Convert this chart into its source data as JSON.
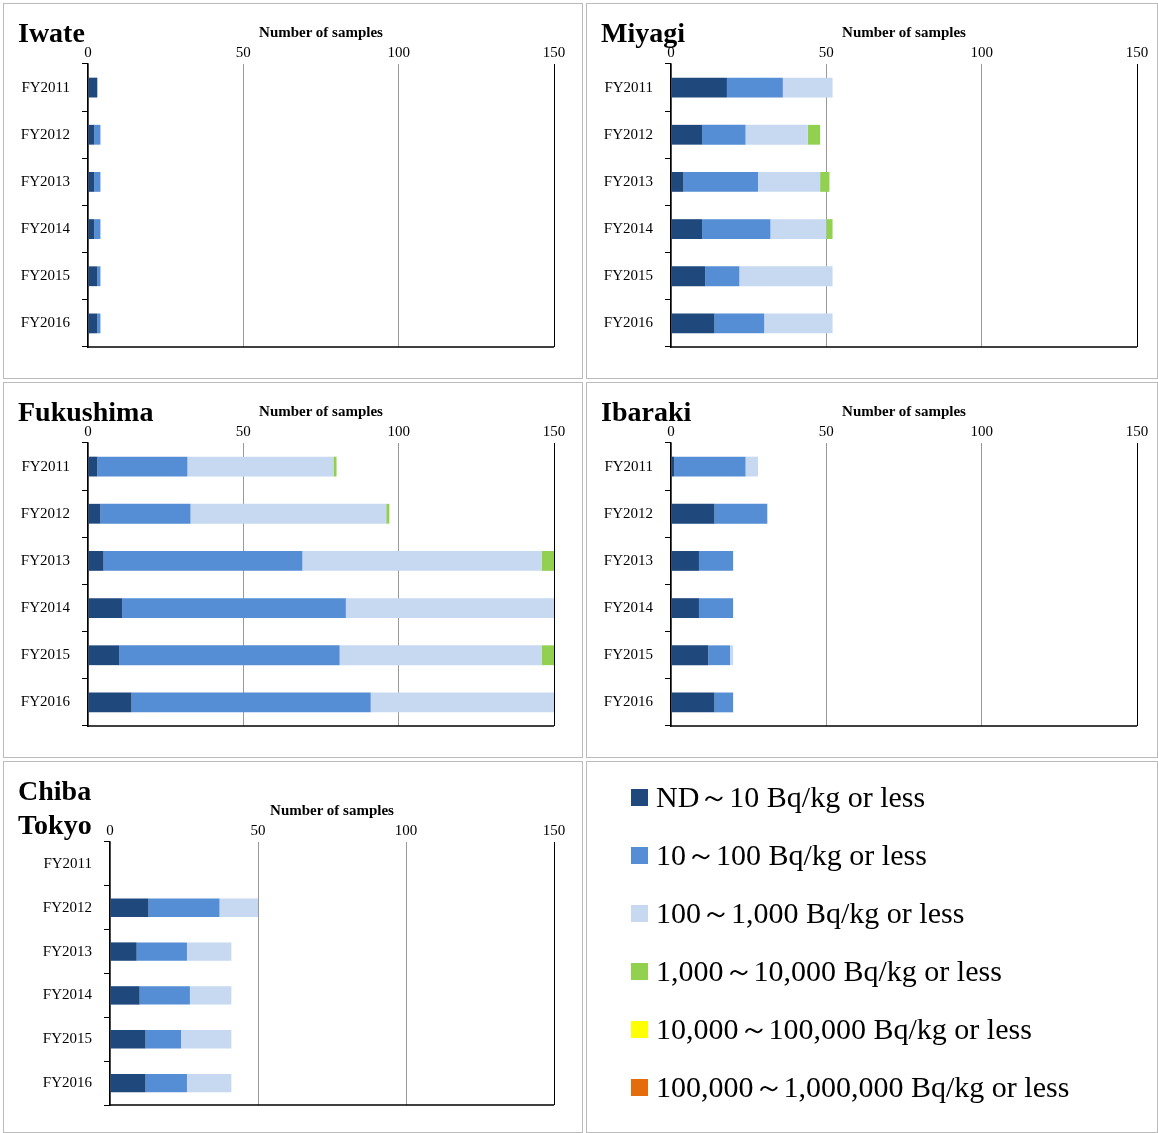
{
  "chart_data": [
    {
      "type": "bar",
      "title": "Iwate",
      "xlabel": "Number of samples",
      "orientation": "horizontal",
      "stacked": true,
      "grid": "x",
      "xlim": [
        0,
        150
      ],
      "xticks": [
        0,
        50,
        100,
        150
      ],
      "categories": [
        "FY2011",
        "FY2012",
        "FY2013",
        "FY2014",
        "FY2015",
        "FY2016"
      ],
      "series": [
        {
          "color": "#1f497d",
          "values": [
            3,
            2,
            2,
            2,
            3,
            3
          ]
        },
        {
          "color": "#558ed5",
          "values": [
            0,
            2,
            2,
            2,
            1,
            1
          ]
        },
        {
          "color": "#c6d9f1",
          "values": [
            0,
            0,
            0,
            0,
            0,
            0
          ]
        },
        {
          "color": "#92d050",
          "values": [
            0,
            0,
            0,
            0,
            0,
            0
          ]
        },
        {
          "color": "#ffff00",
          "values": [
            0,
            0,
            0,
            0,
            0,
            0
          ]
        },
        {
          "color": "#e46c0a",
          "values": [
            0,
            0,
            0,
            0,
            0,
            0
          ]
        }
      ]
    },
    {
      "type": "bar",
      "title": "Miyagi",
      "xlabel": "Number of samples",
      "orientation": "horizontal",
      "stacked": true,
      "grid": "x",
      "xlim": [
        0,
        150
      ],
      "xticks": [
        0,
        50,
        100,
        150
      ],
      "categories": [
        "FY2011",
        "FY2012",
        "FY2013",
        "FY2014",
        "FY2015",
        "FY2016"
      ],
      "series": [
        {
          "color": "#1f497d",
          "values": [
            18,
            10,
            4,
            10,
            11,
            14
          ]
        },
        {
          "color": "#558ed5",
          "values": [
            18,
            14,
            24,
            22,
            11,
            16
          ]
        },
        {
          "color": "#c6d9f1",
          "values": [
            16,
            20,
            20,
            18,
            30,
            22
          ]
        },
        {
          "color": "#92d050",
          "values": [
            0,
            4,
            3,
            2,
            0,
            0
          ]
        },
        {
          "color": "#ffff00",
          "values": [
            0,
            0,
            0,
            0,
            0,
            0
          ]
        },
        {
          "color": "#e46c0a",
          "values": [
            0,
            0,
            0,
            0,
            0,
            0
          ]
        }
      ]
    },
    {
      "type": "bar",
      "title": "Fukushima",
      "xlabel": "Number of samples",
      "orientation": "horizontal",
      "stacked": true,
      "grid": "x",
      "xlim": [
        0,
        150
      ],
      "xticks": [
        0,
        50,
        100,
        150
      ],
      "categories": [
        "FY2011",
        "FY2012",
        "FY2013",
        "FY2014",
        "FY2015",
        "FY2016"
      ],
      "series": [
        {
          "color": "#1f497d",
          "values": [
            3,
            4,
            5,
            11,
            10,
            14
          ]
        },
        {
          "color": "#558ed5",
          "values": [
            29,
            29,
            64,
            72,
            71,
            77
          ]
        },
        {
          "color": "#c6d9f1",
          "values": [
            47,
            63,
            77,
            67,
            65,
            59
          ]
        },
        {
          "color": "#92d050",
          "values": [
            1,
            1,
            4,
            0,
            4,
            0
          ]
        },
        {
          "color": "#ffff00",
          "values": [
            0,
            0,
            0,
            0,
            0,
            0
          ]
        },
        {
          "color": "#e46c0a",
          "values": [
            0,
            0,
            0,
            0,
            0,
            0
          ]
        }
      ]
    },
    {
      "type": "bar",
      "title": "Ibaraki",
      "xlabel": "Number of samples",
      "orientation": "horizontal",
      "stacked": true,
      "grid": "x",
      "xlim": [
        0,
        150
      ],
      "xticks": [
        0,
        50,
        100,
        150
      ],
      "categories": [
        "FY2011",
        "FY2012",
        "FY2013",
        "FY2014",
        "FY2015",
        "FY2016"
      ],
      "series": [
        {
          "color": "#1f497d",
          "values": [
            1,
            14,
            9,
            9,
            12,
            14
          ]
        },
        {
          "color": "#558ed5",
          "values": [
            23,
            17,
            11,
            11,
            7,
            6
          ]
        },
        {
          "color": "#c6d9f1",
          "values": [
            4,
            0,
            0,
            0,
            1,
            0
          ]
        },
        {
          "color": "#92d050",
          "values": [
            0,
            0,
            0,
            0,
            0,
            0
          ]
        },
        {
          "color": "#ffff00",
          "values": [
            0,
            0,
            0,
            0,
            0,
            0
          ]
        },
        {
          "color": "#e46c0a",
          "values": [
            0,
            0,
            0,
            0,
            0,
            0
          ]
        }
      ]
    },
    {
      "type": "bar",
      "title": "Chiba Tokyo",
      "xlabel": "Number of samples",
      "orientation": "horizontal",
      "stacked": true,
      "grid": "x",
      "xlim": [
        0,
        150
      ],
      "xticks": [
        0,
        50,
        100,
        150
      ],
      "legend": "right",
      "categories": [
        "FY2011",
        "FY2012",
        "FY2013",
        "FY2014",
        "FY2015",
        "FY2016"
      ],
      "series": [
        {
          "name": "ND～10 Bq/kg or less",
          "color": "#1f497d",
          "values": [
            null,
            13,
            9,
            10,
            12,
            12
          ]
        },
        {
          "name": "10～100 Bq/kg or less",
          "color": "#558ed5",
          "values": [
            null,
            24,
            17,
            17,
            12,
            14
          ]
        },
        {
          "name": "100～1,000 Bq/kg or less",
          "color": "#c6d9f1",
          "values": [
            null,
            13,
            15,
            14,
            17,
            15
          ]
        },
        {
          "name": "1,000～10,000 Bq/kg or less",
          "color": "#92d050",
          "values": [
            null,
            0,
            0,
            0,
            0,
            0
          ]
        },
        {
          "name": "10,000～100,000 Bq/kg or less",
          "color": "#ffff00",
          "values": [
            null,
            0,
            0,
            0,
            0,
            0
          ]
        },
        {
          "name": "100,000～1,000,000 Bq/kg or less",
          "color": "#e46c0a",
          "values": [
            null,
            0,
            0,
            0,
            0,
            0
          ]
        }
      ]
    }
  ]
}
